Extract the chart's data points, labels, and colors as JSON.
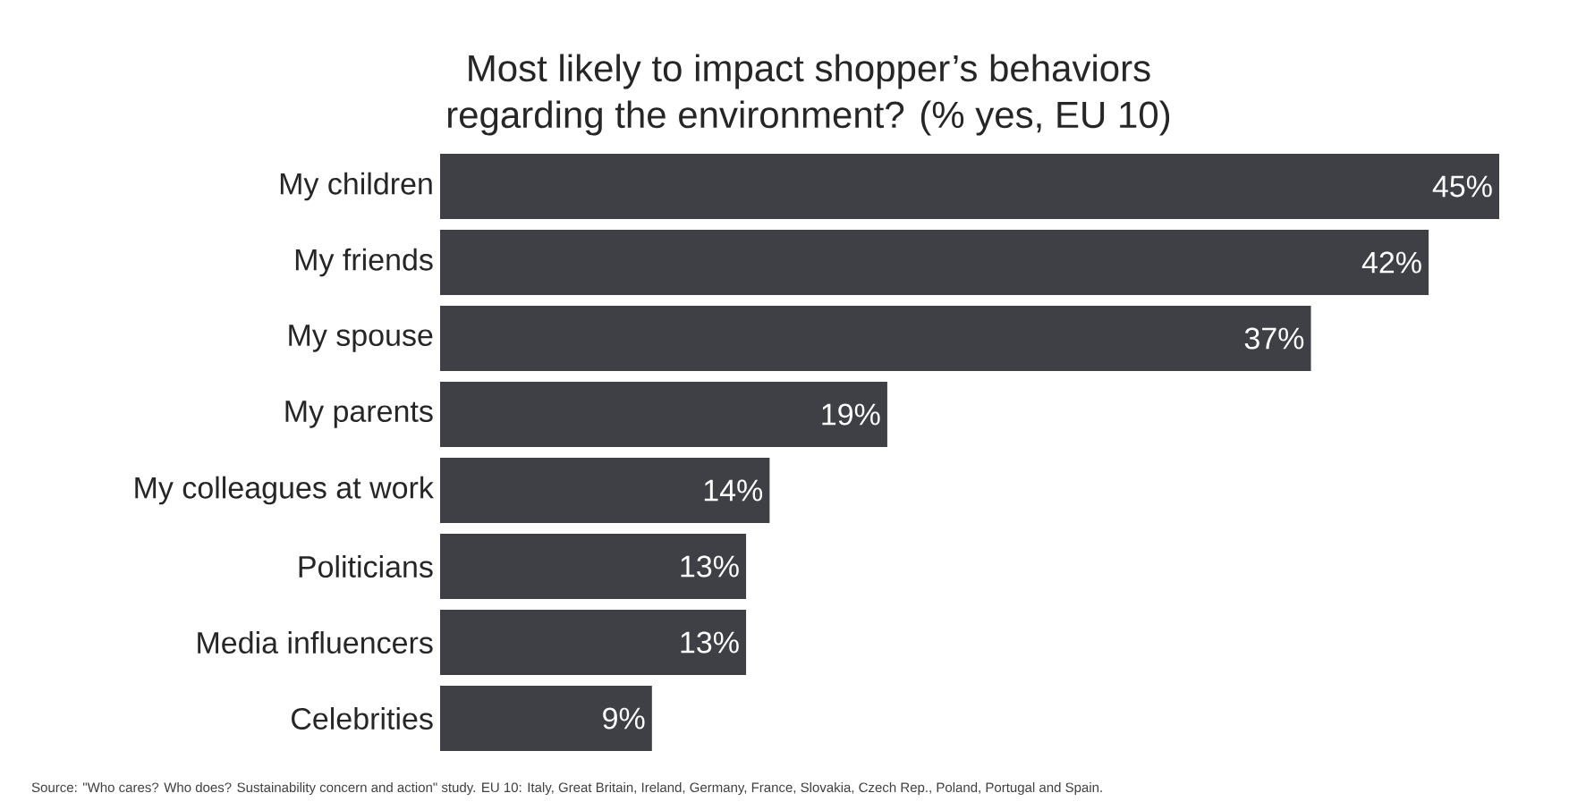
{
  "chart_data": {
    "type": "bar",
    "orientation": "horizontal",
    "title": "Most likely to impact shopper’s behaviors\nregarding the environment? (% yes, EU 10)",
    "categories": [
      "My children",
      "My friends",
      "My spouse",
      "My parents",
      "My colleagues at work",
      "Politicians",
      "Media influencers",
      "Celebrities"
    ],
    "values": [
      45,
      42,
      37,
      19,
      14,
      13,
      13,
      9
    ],
    "value_labels": [
      "45%",
      "42%",
      "37%",
      "19%",
      "14%",
      "13%",
      "13%",
      "9%"
    ],
    "color": "#3f4045",
    "annotations": [
      "Source: \"Who cares? Who does? Sustainability concern and action\" study. EU 10: Italy, Great Britain, Ireland, Germany, France, Slovakia, Czech Rep., Poland, Portugal and Spain."
    ]
  }
}
